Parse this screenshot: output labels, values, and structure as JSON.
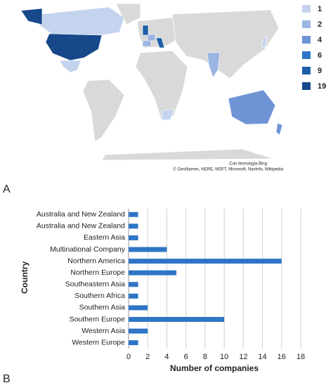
{
  "chart_data": [
    {
      "type": "choropleth",
      "label": "A",
      "attribution": [
        "Con tecnologia Bing",
        "© GeoNames, HERE, MSFT, Microsoft, NavInfo, Wikipedia"
      ],
      "values": [
        1,
        2,
        4,
        6,
        9,
        19
      ],
      "colors": [
        "#c5d4ee",
        "#9bb5e3",
        "#6f94d6",
        "#2e75c9",
        "#1f5ea8",
        "#16488a"
      ]
    },
    {
      "type": "hbar",
      "label": "B",
      "categories": [
        "Australia and New Zealand",
        "Australia and New Zealand",
        "Eastern Asia",
        "Multinational Company",
        "Northern America",
        "Northern Europe",
        "Southeastern Asia",
        "Southern Africa",
        "Southern Asia",
        "Southern Europe",
        "Western Asia",
        "Western Europe"
      ],
      "values": [
        1,
        1,
        1,
        4,
        16,
        5,
        1,
        1,
        2,
        10,
        2,
        1
      ],
      "color": "#2e75c6",
      "xlim": [
        0,
        18
      ],
      "xticks": [
        0,
        2,
        4,
        6,
        8,
        10,
        12,
        14,
        16,
        18
      ],
      "grid": true,
      "xlabel": "Number of companies",
      "ylabel": "Country"
    }
  ]
}
